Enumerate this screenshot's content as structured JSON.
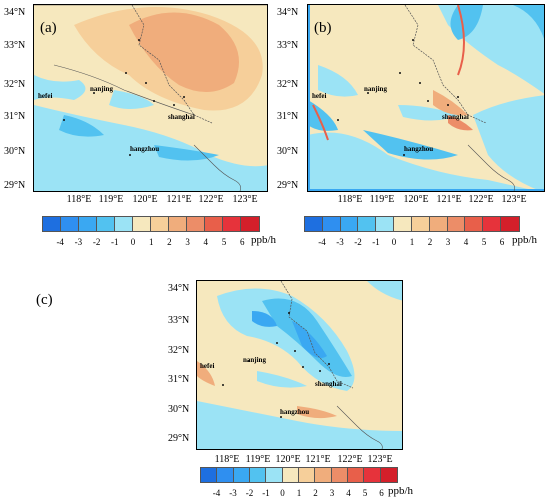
{
  "panels": [
    {
      "label": "(a)",
      "cities": [
        "nanjing",
        "hefei",
        "shanghai",
        "hangzhou"
      ]
    },
    {
      "label": "(b)",
      "cities": [
        "nanjing",
        "hefei",
        "shanghai",
        "hangzhou"
      ]
    },
    {
      "label": "(c)",
      "cities": [
        "nanjing",
        "hefei",
        "shanghai",
        "hangzhou"
      ]
    }
  ],
  "lat_ticks": [
    "34°N",
    "33°N",
    "32°N",
    "31°N",
    "30°N",
    "29°N"
  ],
  "lon_ticks": [
    "118°E",
    "119°E",
    "120°E",
    "121°E",
    "122°E",
    "123°E"
  ],
  "colorbar": {
    "labels": [
      "-4",
      "-3",
      "-2",
      "-1",
      "0",
      "1",
      "2",
      "3",
      "4",
      "5",
      "6"
    ],
    "unit": "ppb/h",
    "colors": [
      "#1e6fe0",
      "#2f8ff0",
      "#3aa8f2",
      "#52c2f0",
      "#9be3f5",
      "#f6e8be",
      "#f6cf9a",
      "#f0ad7c",
      "#ec8d68",
      "#e85f4a",
      "#e6333b",
      "#d41f2a"
    ]
  },
  "colors": {
    "land_neutral": "#f6e8be",
    "positive_light": "#f6cf9a",
    "positive_mid": "#f0ad7c",
    "negative_light": "#9be3f5",
    "negative_mid": "#52c2f0",
    "negative_dark": "#3aa8f2"
  }
}
